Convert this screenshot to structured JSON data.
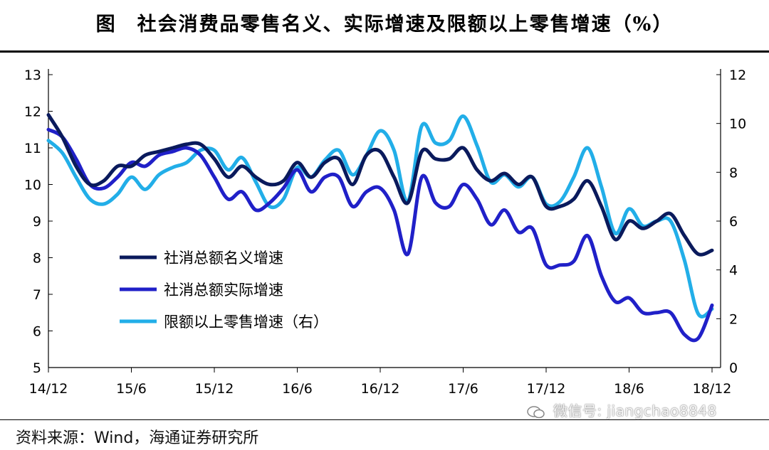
{
  "title": "图　社会消费品零售名义、实际增速及限额以上零售增速（%）",
  "source": "资料来源：Wind，海通证券研究所",
  "watermark": "微信号: jiangchao8848",
  "chart_data": {
    "type": "line",
    "x_ticks": [
      "14/12",
      "15/6",
      "15/12",
      "16/6",
      "16/12",
      "17/6",
      "17/12",
      "18/6",
      "18/12"
    ],
    "x": [
      "14/12",
      "15/1",
      "15/2",
      "15/3",
      "15/4",
      "15/5",
      "15/6",
      "15/7",
      "15/8",
      "15/9",
      "15/10",
      "15/11",
      "15/12",
      "16/1",
      "16/2",
      "16/3",
      "16/4",
      "16/5",
      "16/6",
      "16/7",
      "16/8",
      "16/9",
      "16/10",
      "16/11",
      "16/12",
      "17/1",
      "17/2",
      "17/3",
      "17/4",
      "17/5",
      "17/6",
      "17/7",
      "17/8",
      "17/9",
      "17/10",
      "17/11",
      "17/12",
      "18/1",
      "18/2",
      "18/3",
      "18/4",
      "18/5",
      "18/6",
      "18/7",
      "18/8",
      "18/9",
      "18/10",
      "18/11",
      "18/12"
    ],
    "y_left": {
      "min": 5,
      "max": 13,
      "ticks": [
        5,
        6,
        7,
        8,
        9,
        10,
        11,
        12,
        13
      ]
    },
    "y_right": {
      "min": 0,
      "max": 12,
      "ticks": [
        0,
        2,
        4,
        6,
        8,
        10,
        12
      ]
    },
    "legend": "left-center",
    "grid": false,
    "series": [
      {
        "name": "社消总额名义增速",
        "axis": "left",
        "color": "#0a1a5c",
        "values": [
          11.9,
          11.3,
          10.5,
          10.0,
          10.1,
          10.5,
          10.5,
          10.8,
          10.9,
          11.0,
          11.1,
          11.1,
          10.7,
          10.2,
          10.5,
          10.2,
          10.0,
          10.1,
          10.6,
          10.2,
          10.6,
          10.7,
          10.0,
          10.8,
          10.9,
          10.2,
          9.5,
          10.9,
          10.7,
          10.7,
          11.0,
          10.4,
          10.1,
          10.3,
          10.0,
          10.2,
          9.4,
          9.4,
          9.6,
          10.1,
          9.4,
          8.5,
          9.0,
          8.8,
          9.0,
          9.2,
          8.6,
          8.1,
          8.2
        ]
      },
      {
        "name": "社消总额实际增速",
        "axis": "left",
        "color": "#2020c8",
        "values": [
          11.5,
          11.3,
          10.7,
          10.0,
          9.9,
          10.2,
          10.6,
          10.5,
          10.8,
          10.9,
          11.0,
          10.8,
          10.2,
          9.6,
          9.8,
          9.3,
          9.5,
          9.9,
          10.4,
          9.8,
          10.2,
          10.2,
          9.4,
          9.8,
          9.9,
          9.3,
          8.1,
          10.2,
          9.5,
          9.4,
          10.0,
          9.6,
          8.9,
          9.3,
          8.7,
          8.8,
          7.8,
          7.8,
          7.9,
          8.6,
          7.5,
          6.8,
          6.9,
          6.5,
          6.5,
          6.5,
          5.9,
          5.8,
          6.7
        ]
      },
      {
        "name": "限额以上零售增速（右）",
        "axis": "right",
        "color": "#22aee8",
        "values": [
          9.3,
          8.8,
          7.8,
          6.9,
          6.7,
          7.1,
          7.8,
          7.3,
          7.9,
          8.2,
          8.4,
          8.9,
          8.9,
          8.1,
          8.6,
          7.6,
          6.6,
          6.9,
          8.2,
          7.8,
          8.5,
          8.9,
          7.9,
          8.7,
          9.7,
          8.9,
          6.8,
          9.9,
          9.2,
          9.3,
          10.3,
          9.1,
          7.6,
          7.9,
          7.4,
          7.8,
          6.7,
          6.8,
          7.8,
          9.0,
          7.4,
          5.5,
          6.5,
          5.8,
          6.0,
          6.0,
          4.4,
          2.2,
          2.4
        ]
      }
    ]
  }
}
